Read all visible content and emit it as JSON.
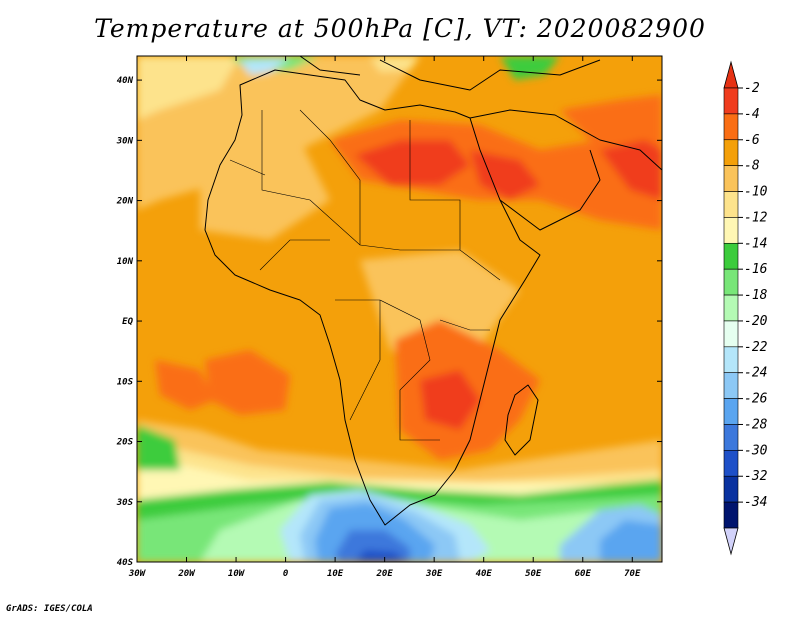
{
  "title": "Temperature at 500hPa [C], VT: 2020082900",
  "footer": "GrADS: IGES/COLA",
  "map": {
    "lon_range": [
      -30,
      76
    ],
    "lat_range": [
      -40,
      44
    ],
    "lon_ticks": [
      {
        "value": -30,
        "label": "30W"
      },
      {
        "value": -20,
        "label": "20W"
      },
      {
        "value": -10,
        "label": "10W"
      },
      {
        "value": 0,
        "label": "0"
      },
      {
        "value": 10,
        "label": "10E"
      },
      {
        "value": 20,
        "label": "20E"
      },
      {
        "value": 30,
        "label": "30E"
      },
      {
        "value": 40,
        "label": "40E"
      },
      {
        "value": 50,
        "label": "50E"
      },
      {
        "value": 60,
        "label": "60E"
      },
      {
        "value": 70,
        "label": "70E"
      }
    ],
    "lat_ticks": [
      {
        "value": 40,
        "label": "40N"
      },
      {
        "value": 30,
        "label": "30N"
      },
      {
        "value": 20,
        "label": "20N"
      },
      {
        "value": 10,
        "label": "10N"
      },
      {
        "value": 0,
        "label": "EQ"
      },
      {
        "value": -10,
        "label": "10S"
      },
      {
        "value": -20,
        "label": "20S"
      },
      {
        "value": -30,
        "label": "30S"
      },
      {
        "value": -40,
        "label": "40S"
      }
    ]
  },
  "colorbar": {
    "labels": [
      "-2",
      "-4",
      "-6",
      "-8",
      "-10",
      "-12",
      "-14",
      "-16",
      "-18",
      "-20",
      "-22",
      "-24",
      "-26",
      "-28",
      "-30",
      "-32",
      "-34"
    ],
    "colors": [
      "#f03c1e",
      "#fa6e14",
      "#f4a00a",
      "#fac35a",
      "#fde38c",
      "#fff7b4",
      "#3ccc3c",
      "#78e678",
      "#b4fab4",
      "#e6fff0",
      "#b4e6fa",
      "#8cc8f5",
      "#5aa5f0",
      "#3c78dc",
      "#1e50c8",
      "#0a32a0",
      "#00146e"
    ],
    "top_triangle_color": "#e63214",
    "bottom_triangle_color": "#d2d2fa"
  }
}
